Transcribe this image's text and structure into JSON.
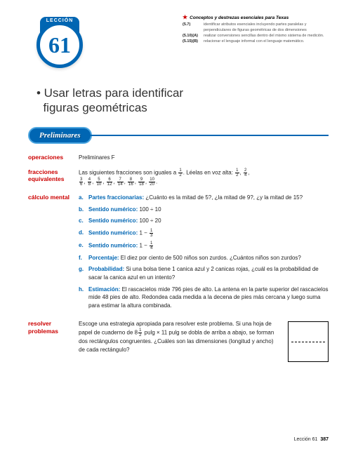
{
  "standards": {
    "header": "Conceptos y destrezas esenciales para Texas",
    "rows": [
      {
        "code": "(5.7)",
        "text": "identificar atributos esenciales incluyendo partes paralelas y perpendiculares de figuras geométricas de dos dimensiones"
      },
      {
        "code": "(5.10)(A)",
        "text": "realizar conversiones sencillas dentro del mismo sistema de medición."
      },
      {
        "code": "(5.15)(B)",
        "text": "relacionar el lenguaje informal con el lenguaje matemático."
      }
    ]
  },
  "badge": {
    "label": "LECCIÓN",
    "number": "61"
  },
  "title": "• Usar letras para identificar\n  figuras geométricas",
  "prelim_label": "Preliminares",
  "operaciones": {
    "label": "operaciones",
    "text": "Preliminares F"
  },
  "fracciones": {
    "label": "fracciones equivalentes",
    "intro": "Las siguientes fracciones son iguales a ",
    "half": {
      "n": "1",
      "d": "2"
    },
    "mid": ". Léelas en voz alta:",
    "list": [
      {
        "n": "1",
        "d": "2"
      },
      {
        "n": "2",
        "d": "4"
      },
      {
        "n": "3",
        "d": "6"
      },
      {
        "n": "4",
        "d": "8"
      },
      {
        "n": "5",
        "d": "10"
      },
      {
        "n": "6",
        "d": "12"
      },
      {
        "n": "7",
        "d": "14"
      },
      {
        "n": "8",
        "d": "16"
      },
      {
        "n": "9",
        "d": "18"
      },
      {
        "n": "10",
        "d": "20"
      }
    ]
  },
  "calculo": {
    "label": "cálculo mental",
    "items": [
      {
        "let": "a.",
        "cat": "Partes fraccionarias:",
        "text": " ¿Cuánto es la mitad de 5?, ¿la mitad de 9?, ¿y la mitad de 15?"
      },
      {
        "let": "b.",
        "cat": "Sentido numérico:",
        "text": " 100 ÷ 10"
      },
      {
        "let": "c.",
        "cat": "Sentido numérico:",
        "text": " 100 ÷ 20"
      },
      {
        "let": "d.",
        "cat": "Sentido numérico:",
        "text": " 1 − ",
        "frac": {
          "n": "1",
          "d": "3"
        }
      },
      {
        "let": "e.",
        "cat": "Sentido numérico:",
        "text": " 1 − ",
        "frac": {
          "n": "1",
          "d": "4"
        }
      },
      {
        "let": "f.",
        "cat": "Porcentaje:",
        "text": " El diez por ciento de 500 niños son zurdos. ¿Cuántos niños son zurdos?"
      },
      {
        "let": "g.",
        "cat": "Probabilidad:",
        "text": " Si una bolsa tiene 1 canica azul y 2 canicas rojas, ¿cuál es la probabilidad de sacar la canica azul en un intento?"
      },
      {
        "let": "h.",
        "cat": "Estimación:",
        "text": " El rascacielos mide 796 pies de alto. La antena en la parte superior del rascacielos mide 48 pies de alto. Redondea cada medida a la decena de pies más cercana y luego suma para estimar la altura combinada."
      }
    ]
  },
  "resolver": {
    "label": "resolver problemas",
    "p1": "Escoge una estrategia apropiada para resolver este problema. Si una hoja de papel de cuaderno de 8",
    "frac": {
      "n": "1",
      "d": "2"
    },
    "p2": " pulg × 11 pulg se dobla de arriba a abajo, se forman dos rectángulos congruentes. ¿Cuáles son las dimensiones (longitud y ancho) de cada rectángulo?"
  },
  "footer": {
    "label": "Lección 61",
    "page": "387"
  }
}
